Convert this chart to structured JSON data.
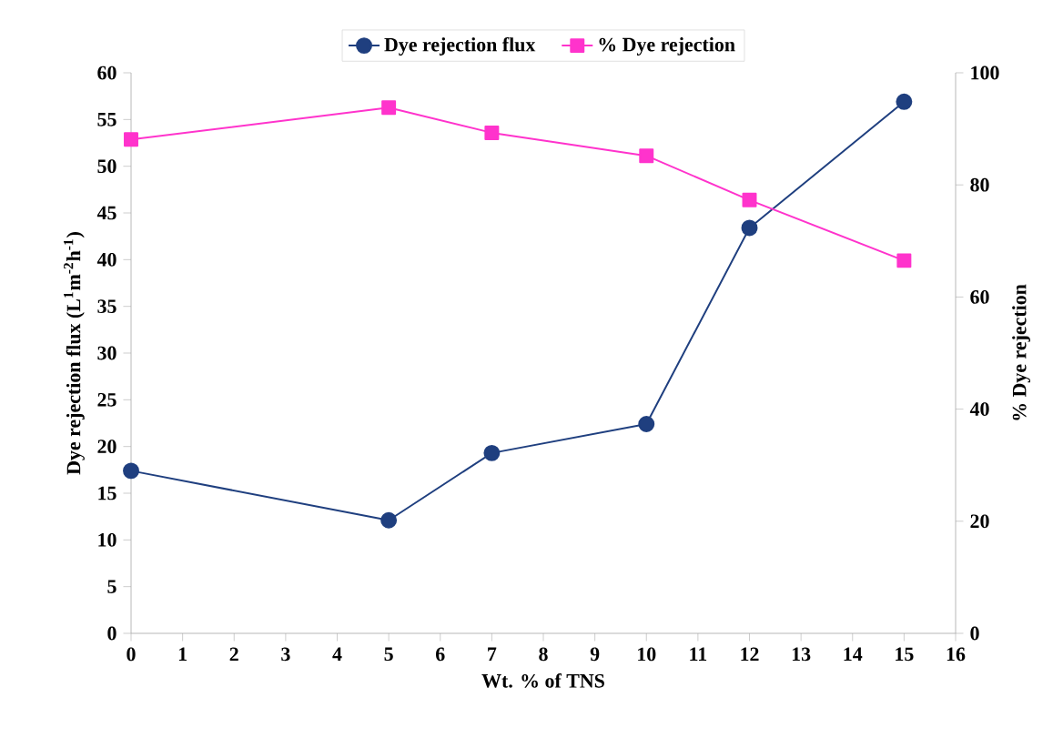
{
  "chart_data": {
    "type": "line",
    "xlabel": "Wt. % of TNS",
    "ylabel": "Dye rejection flux (L$^{1}$m$^{-2}$h$^{-1}$)",
    "y2label": "% Dye rejection",
    "x": [
      0,
      5,
      7,
      10,
      12,
      15
    ],
    "series": [
      {
        "name": "Dye rejection flux",
        "color": "#1f3f7f",
        "marker": "circle",
        "values": [
          17.4,
          12.1,
          19.3,
          22.4,
          43.4,
          56.9
        ]
      },
      {
        "name": "% Dye rejection",
        "color": "#ff33cc",
        "marker": "square",
        "axis": "y2",
        "values": [
          88.1,
          93.8,
          89.3,
          85.2,
          77.3,
          66.5
        ]
      }
    ],
    "xlim": [
      0,
      16
    ],
    "xticks": [
      0,
      1,
      2,
      3,
      4,
      5,
      6,
      7,
      8,
      9,
      10,
      11,
      12,
      13,
      14,
      15,
      16
    ],
    "ylim": [
      0,
      60
    ],
    "yticks": [
      0,
      5,
      10,
      15,
      20,
      25,
      30,
      35,
      40,
      45,
      50,
      55,
      60
    ],
    "y2lim": [
      0,
      100
    ],
    "y2ticks": [
      0,
      20,
      40,
      60,
      80,
      100
    ],
    "grid": false,
    "legend": "top"
  }
}
